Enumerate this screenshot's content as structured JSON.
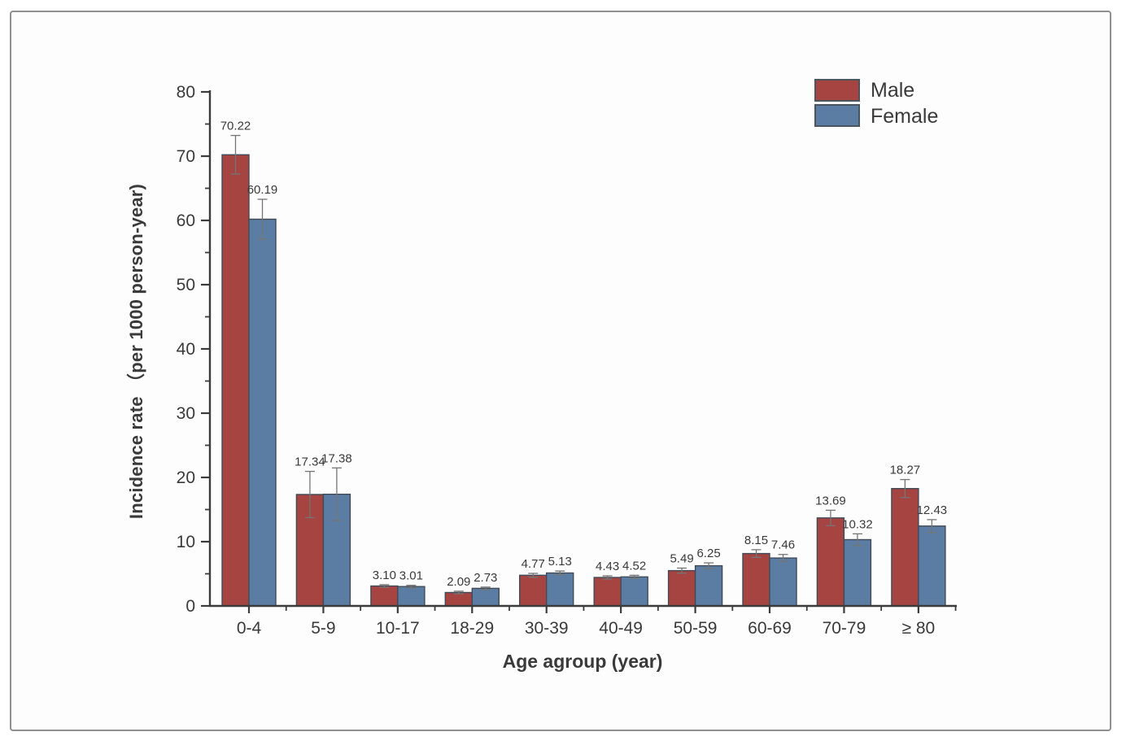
{
  "chart_data": {
    "type": "bar",
    "title": "",
    "xlabel": "Age agroup (year)",
    "ylabel": "Incidence rate （per 1000 person-year)",
    "categories": [
      "0-4",
      "5-9",
      "10-17",
      "18-29",
      "30-39",
      "40-49",
      "50-59",
      "60-69",
      "70-79",
      "≥ 80"
    ],
    "series": [
      {
        "name": "Male",
        "color": "#A64441",
        "values": [
          70.22,
          17.34,
          3.1,
          2.09,
          4.77,
          4.43,
          5.49,
          8.15,
          13.69,
          18.27
        ],
        "labels": [
          "70.22",
          "17.34",
          "3.10",
          "2.09",
          "4.77",
          "4.43",
          "5.49",
          "8.15",
          "13.69",
          "18.27"
        ],
        "errors": [
          3.0,
          3.6,
          0.2,
          0.2,
          0.3,
          0.25,
          0.4,
          0.6,
          1.2,
          1.4
        ]
      },
      {
        "name": "Female",
        "color": "#5B7DA3",
        "values": [
          60.19,
          17.38,
          3.01,
          2.73,
          5.13,
          4.52,
          6.25,
          7.46,
          10.32,
          12.43
        ],
        "labels": [
          "60.19",
          "17.38",
          "3.01",
          "2.73",
          "5.13",
          "4.52",
          "6.25",
          "7.46",
          "10.32",
          "12.43"
        ],
        "errors": [
          3.1,
          4.1,
          0.2,
          0.2,
          0.3,
          0.25,
          0.45,
          0.55,
          0.9,
          1.0
        ]
      }
    ],
    "ylim": [
      0,
      80
    ],
    "y_ticks": [
      "0",
      "10",
      "20",
      "30",
      "40",
      "50",
      "60",
      "70",
      "80"
    ],
    "y_minor_step": 5,
    "grid": false,
    "legend_position": "top-right",
    "error_bars": true
  },
  "legend": {
    "items": [
      {
        "label": "Male",
        "color": "#A64441"
      },
      {
        "label": "Female",
        "color": "#5B7DA3"
      }
    ]
  },
  "axes": {
    "x_title": "Age agroup (year)",
    "y_title": "Incidence rate （per 1000 person-year)"
  },
  "colors": {
    "male": "#A64441",
    "female": "#5B7DA3",
    "bar_edge": "#414B57",
    "axis": "#3C3C3C",
    "text": "#3A3A3A",
    "error_bar": "#757575",
    "frame_border": "#8F8F8F",
    "background": "#FDFDFD"
  }
}
